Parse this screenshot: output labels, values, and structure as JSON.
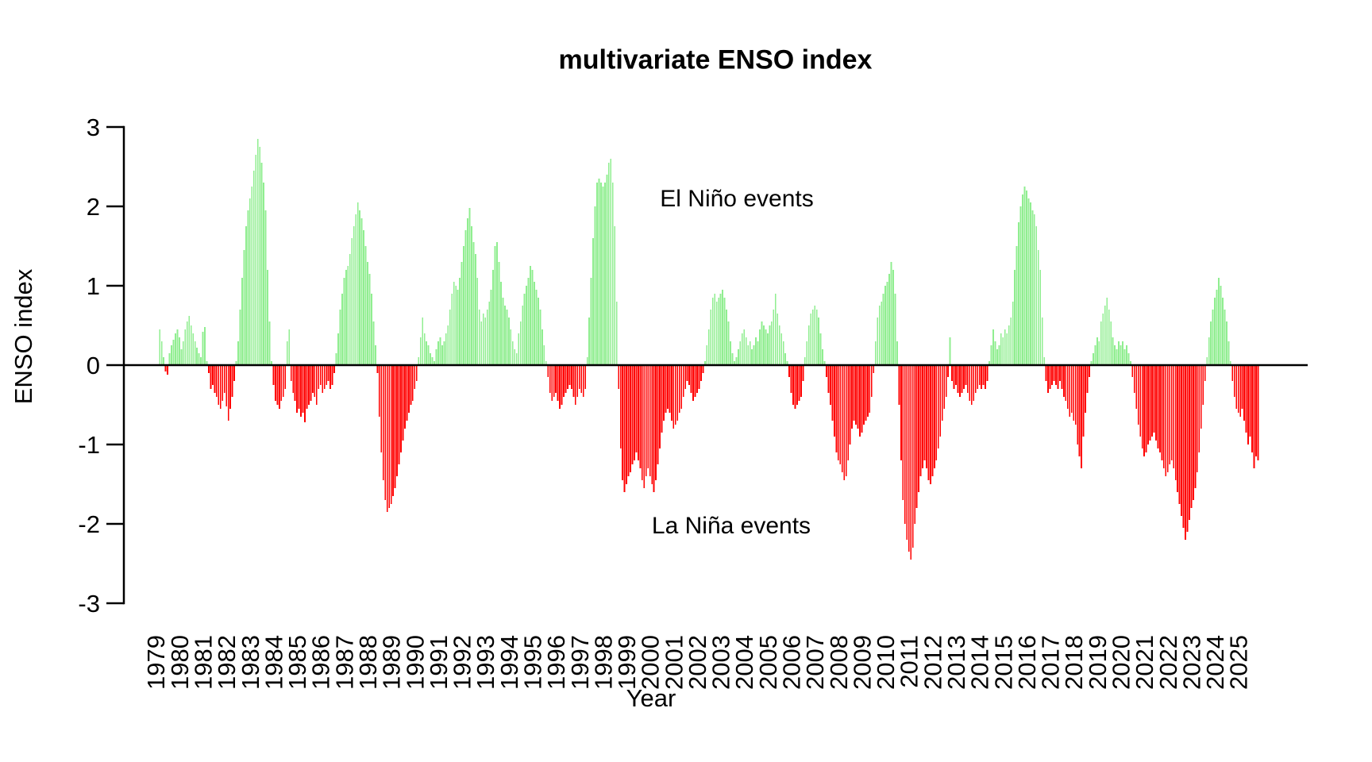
{
  "title": "multivariate ENSO index",
  "annotations": {
    "el_nino": "El Niño events",
    "la_nina": "La Niña events"
  },
  "axes": {
    "xlabel": "Year",
    "ylabel": "ENSO index",
    "y_tick_labels": [
      "3",
      "2",
      "1",
      "0",
      "-1",
      "-2",
      "-3"
    ],
    "y_tick_values": [
      3,
      2,
      1,
      0,
      -1,
      -2,
      -3
    ],
    "x_tick_labels": [
      "1979",
      "1980",
      "1981",
      "1982",
      "1983",
      "1984",
      "1985",
      "1986",
      "1987",
      "1988",
      "1989",
      "1990",
      "1991",
      "1992",
      "1993",
      "1994",
      "1995",
      "1996",
      "1997",
      "1998",
      "1999",
      "2000",
      "2001",
      "2002",
      "2003",
      "2004",
      "2005",
      "2006",
      "2007",
      "2008",
      "2009",
      "2010",
      "2011",
      "2012",
      "2013",
      "2014",
      "2015",
      "2016",
      "2017",
      "2018",
      "2019",
      "2020",
      "2021",
      "2022",
      "2023",
      "2024",
      "2025"
    ]
  },
  "colors": {
    "positive": "#90EE90",
    "negative": "#FF0000",
    "axis": "#000000",
    "text": "#000000",
    "background": "#FFFFFF"
  },
  "chart_data": {
    "type": "bar",
    "title": "multivariate ENSO index",
    "xlabel": "Year",
    "ylabel": "ENSO index",
    "ylim": [
      -3,
      3
    ],
    "grid": false,
    "legend": "none",
    "frequency": "monthly",
    "start": "1979-01",
    "end": "2025-09",
    "positive_label": "El Niño events",
    "negative_label": "La Niña events",
    "values_by_year": {
      "1979": [
        0.45,
        0.3,
        0.1,
        -0.08,
        -0.12,
        0.15,
        0.25,
        0.32,
        0.4,
        0.45,
        0.35,
        0.2
      ],
      "1980": [
        0.3,
        0.45,
        0.55,
        0.62,
        0.5,
        0.4,
        0.3,
        0.22,
        0.15,
        0.1,
        0.42,
        0.48
      ],
      "1981": [
        0.05,
        -0.1,
        -0.3,
        -0.25,
        -0.35,
        -0.4,
        -0.5,
        -0.55,
        -0.45,
        -0.35,
        -0.52,
        -0.7
      ],
      "1982": [
        -0.55,
        -0.4,
        -0.2,
        0.05,
        0.3,
        0.7,
        1.1,
        1.45,
        1.75,
        1.95,
        2.1,
        2.25
      ],
      "1983": [
        2.45,
        2.65,
        2.85,
        2.75,
        2.55,
        2.3,
        1.95,
        1.2,
        0.55,
        0.05,
        -0.25,
        -0.45
      ],
      "1984": [
        -0.5,
        -0.55,
        -0.45,
        -0.4,
        -0.3,
        0.3,
        0.45,
        -0.2,
        -0.35,
        -0.45,
        -0.6,
        -0.55
      ],
      "1985": [
        -0.65,
        -0.6,
        -0.72,
        -0.55,
        -0.5,
        -0.45,
        -0.35,
        -0.4,
        -0.5,
        -0.3,
        -0.25,
        -0.35
      ],
      "1986": [
        -0.3,
        -0.25,
        -0.2,
        -0.3,
        -0.25,
        -0.1,
        0.15,
        0.4,
        0.7,
        0.9,
        1.1,
        1.2
      ],
      "1987": [
        1.25,
        1.4,
        1.6,
        1.75,
        1.9,
        2.05,
        1.95,
        1.85,
        1.7,
        1.5,
        1.3,
        1.15
      ],
      "1988": [
        0.9,
        0.55,
        0.25,
        -0.1,
        -0.65,
        -1.1,
        -1.45,
        -1.7,
        -1.85,
        -1.8,
        -1.75,
        -1.65
      ],
      "1989": [
        -1.55,
        -1.4,
        -1.25,
        -1.1,
        -0.95,
        -0.8,
        -0.7,
        -0.6,
        -0.5,
        -0.45,
        -0.3,
        -0.2
      ],
      "1990": [
        0.1,
        0.35,
        0.6,
        0.4,
        0.3,
        0.25,
        0.15,
        0.1,
        0.05,
        0.2,
        0.3,
        0.35
      ],
      "1991": [
        0.25,
        0.3,
        0.4,
        0.5,
        0.7,
        0.9,
        1.05,
        1.0,
        0.95,
        1.1,
        1.3,
        1.5
      ],
      "1992": [
        1.7,
        1.85,
        1.98,
        1.75,
        1.55,
        1.4,
        1.1,
        0.7,
        0.55,
        0.65,
        0.6,
        0.7
      ],
      "1993": [
        0.8,
        0.95,
        1.2,
        1.5,
        1.55,
        1.3,
        1.05,
        0.85,
        0.75,
        0.7,
        0.6,
        0.45
      ],
      "1994": [
        0.3,
        0.2,
        0.15,
        0.4,
        0.55,
        0.75,
        0.9,
        1.0,
        1.1,
        1.25,
        1.2,
        1.05
      ],
      "1995": [
        0.95,
        0.85,
        0.7,
        0.45,
        0.25,
        0.05,
        -0.15,
        -0.35,
        -0.45,
        -0.4,
        -0.35,
        -0.45
      ],
      "1996": [
        -0.55,
        -0.5,
        -0.4,
        -0.35,
        -0.3,
        -0.25,
        -0.3,
        -0.4,
        -0.5,
        -0.4,
        -0.3,
        -0.35
      ],
      "1997": [
        -0.4,
        -0.3,
        0.1,
        0.6,
        1.1,
        1.6,
        2.0,
        2.3,
        2.35,
        2.3,
        2.25,
        2.3
      ],
      "1998": [
        2.4,
        2.55,
        2.6,
        2.3,
        1.75,
        0.8,
        -0.3,
        -1.05,
        -1.45,
        -1.6,
        -1.5,
        -1.4
      ],
      "1999": [
        -1.35,
        -1.25,
        -1.2,
        -1.1,
        -1.2,
        -1.3,
        -1.45,
        -1.55,
        -1.4,
        -1.3,
        -1.4,
        -1.5
      ],
      "2000": [
        -1.6,
        -1.45,
        -1.25,
        -1.05,
        -0.85,
        -0.7,
        -0.6,
        -0.55,
        -0.6,
        -0.7,
        -0.8,
        -0.75
      ],
      "2001": [
        -0.7,
        -0.6,
        -0.55,
        -0.4,
        -0.3,
        -0.2,
        -0.25,
        -0.35,
        -0.45,
        -0.4,
        -0.35,
        -0.3
      ],
      "2002": [
        -0.2,
        -0.1,
        0.05,
        0.25,
        0.45,
        0.7,
        0.85,
        0.9,
        0.8,
        0.85,
        0.9,
        0.95
      ],
      "2003": [
        0.85,
        0.7,
        0.55,
        0.3,
        0.15,
        0.05,
        0.1,
        0.2,
        0.3,
        0.4,
        0.45,
        0.35
      ],
      "2004": [
        0.25,
        0.3,
        0.2,
        0.25,
        0.35,
        0.3,
        0.45,
        0.55,
        0.5,
        0.45,
        0.4,
        0.5
      ],
      "2005": [
        0.55,
        0.7,
        0.9,
        0.65,
        0.5,
        0.4,
        0.3,
        0.15,
        0.05,
        -0.15,
        -0.35,
        -0.5
      ],
      "2006": [
        -0.55,
        -0.5,
        -0.45,
        -0.4,
        -0.2,
        0.1,
        0.3,
        0.5,
        0.65,
        0.7,
        0.75,
        0.7
      ],
      "2007": [
        0.6,
        0.4,
        0.2,
        0.05,
        -0.15,
        -0.35,
        -0.5,
        -0.7,
        -0.9,
        -1.1,
        -1.2,
        -1.25
      ],
      "2008": [
        -1.35,
        -1.45,
        -1.4,
        -1.2,
        -1.0,
        -0.8,
        -0.7,
        -0.75,
        -0.8,
        -0.9,
        -0.85,
        -0.75
      ],
      "2009": [
        -0.7,
        -0.65,
        -0.6,
        -0.4,
        -0.1,
        0.3,
        0.6,
        0.75,
        0.8,
        0.9,
        1.0,
        1.05
      ],
      "2010": [
        1.15,
        1.3,
        1.2,
        0.9,
        0.3,
        -0.5,
        -1.2,
        -1.7,
        -2.0,
        -2.2,
        -2.35,
        -2.45
      ],
      "2011": [
        -2.3,
        -2.0,
        -1.8,
        -1.6,
        -1.4,
        -1.3,
        -1.2,
        -1.3,
        -1.45,
        -1.5,
        -1.4,
        -1.3
      ],
      "2012": [
        -1.2,
        -1.05,
        -0.9,
        -0.7,
        -0.55,
        -0.4,
        -0.15,
        0.35,
        -0.2,
        -0.3,
        -0.25,
        -0.35
      ],
      "2013": [
        -0.4,
        -0.35,
        -0.3,
        -0.25,
        -0.35,
        -0.45,
        -0.5,
        -0.45,
        -0.35,
        -0.3,
        -0.25,
        -0.3
      ],
      "2014": [
        -0.25,
        -0.3,
        -0.2,
        0.05,
        0.25,
        0.45,
        0.3,
        0.2,
        0.25,
        0.4,
        0.35,
        0.45
      ],
      "2015": [
        0.4,
        0.5,
        0.6,
        0.8,
        1.2,
        1.5,
        1.8,
        2.0,
        2.15,
        2.25,
        2.2,
        2.1
      ],
      "2016": [
        2.05,
        1.95,
        1.9,
        1.75,
        1.45,
        1.2,
        0.6,
        0.1,
        -0.2,
        -0.35,
        -0.3,
        -0.25
      ],
      "2017": [
        -0.2,
        -0.25,
        -0.3,
        -0.2,
        -0.3,
        -0.4,
        -0.45,
        -0.55,
        -0.65,
        -0.6,
        -0.7,
        -0.75
      ],
      "2018": [
        -1.0,
        -1.15,
        -1.3,
        -0.9,
        -0.6,
        -0.35,
        -0.15,
        0.05,
        0.15,
        0.25,
        0.35,
        0.3
      ],
      "2019": [
        0.55,
        0.65,
        0.75,
        0.85,
        0.7,
        0.55,
        0.35,
        0.25,
        0.2,
        0.3,
        0.25,
        0.3
      ],
      "2020": [
        0.2,
        0.25,
        0.15,
        0.05,
        -0.15,
        -0.35,
        -0.55,
        -0.75,
        -0.9,
        -1.05,
        -1.15,
        -1.1
      ],
      "2021": [
        -1.0,
        -0.95,
        -0.9,
        -0.85,
        -0.95,
        -1.05,
        -1.1,
        -1.2,
        -1.3,
        -1.4,
        -1.35,
        -1.25
      ],
      "2022": [
        -1.2,
        -1.3,
        -1.45,
        -1.6,
        -1.75,
        -1.9,
        -2.05,
        -2.2,
        -2.1,
        -1.95,
        -1.8,
        -1.7
      ],
      "2023": [
        -1.55,
        -1.35,
        -1.1,
        -0.8,
        -0.5,
        -0.2,
        0.1,
        0.35,
        0.55,
        0.7,
        0.85,
        0.95
      ],
      "2024": [
        1.1,
        1.0,
        0.85,
        0.7,
        0.55,
        0.3,
        0.05,
        -0.2,
        -0.4,
        -0.55,
        -0.6,
        -0.65
      ],
      "2025": [
        -0.55,
        -0.7,
        -0.85,
        -1.0,
        -0.9,
        -1.1,
        -1.3,
        -1.15,
        -1.2
      ]
    }
  }
}
